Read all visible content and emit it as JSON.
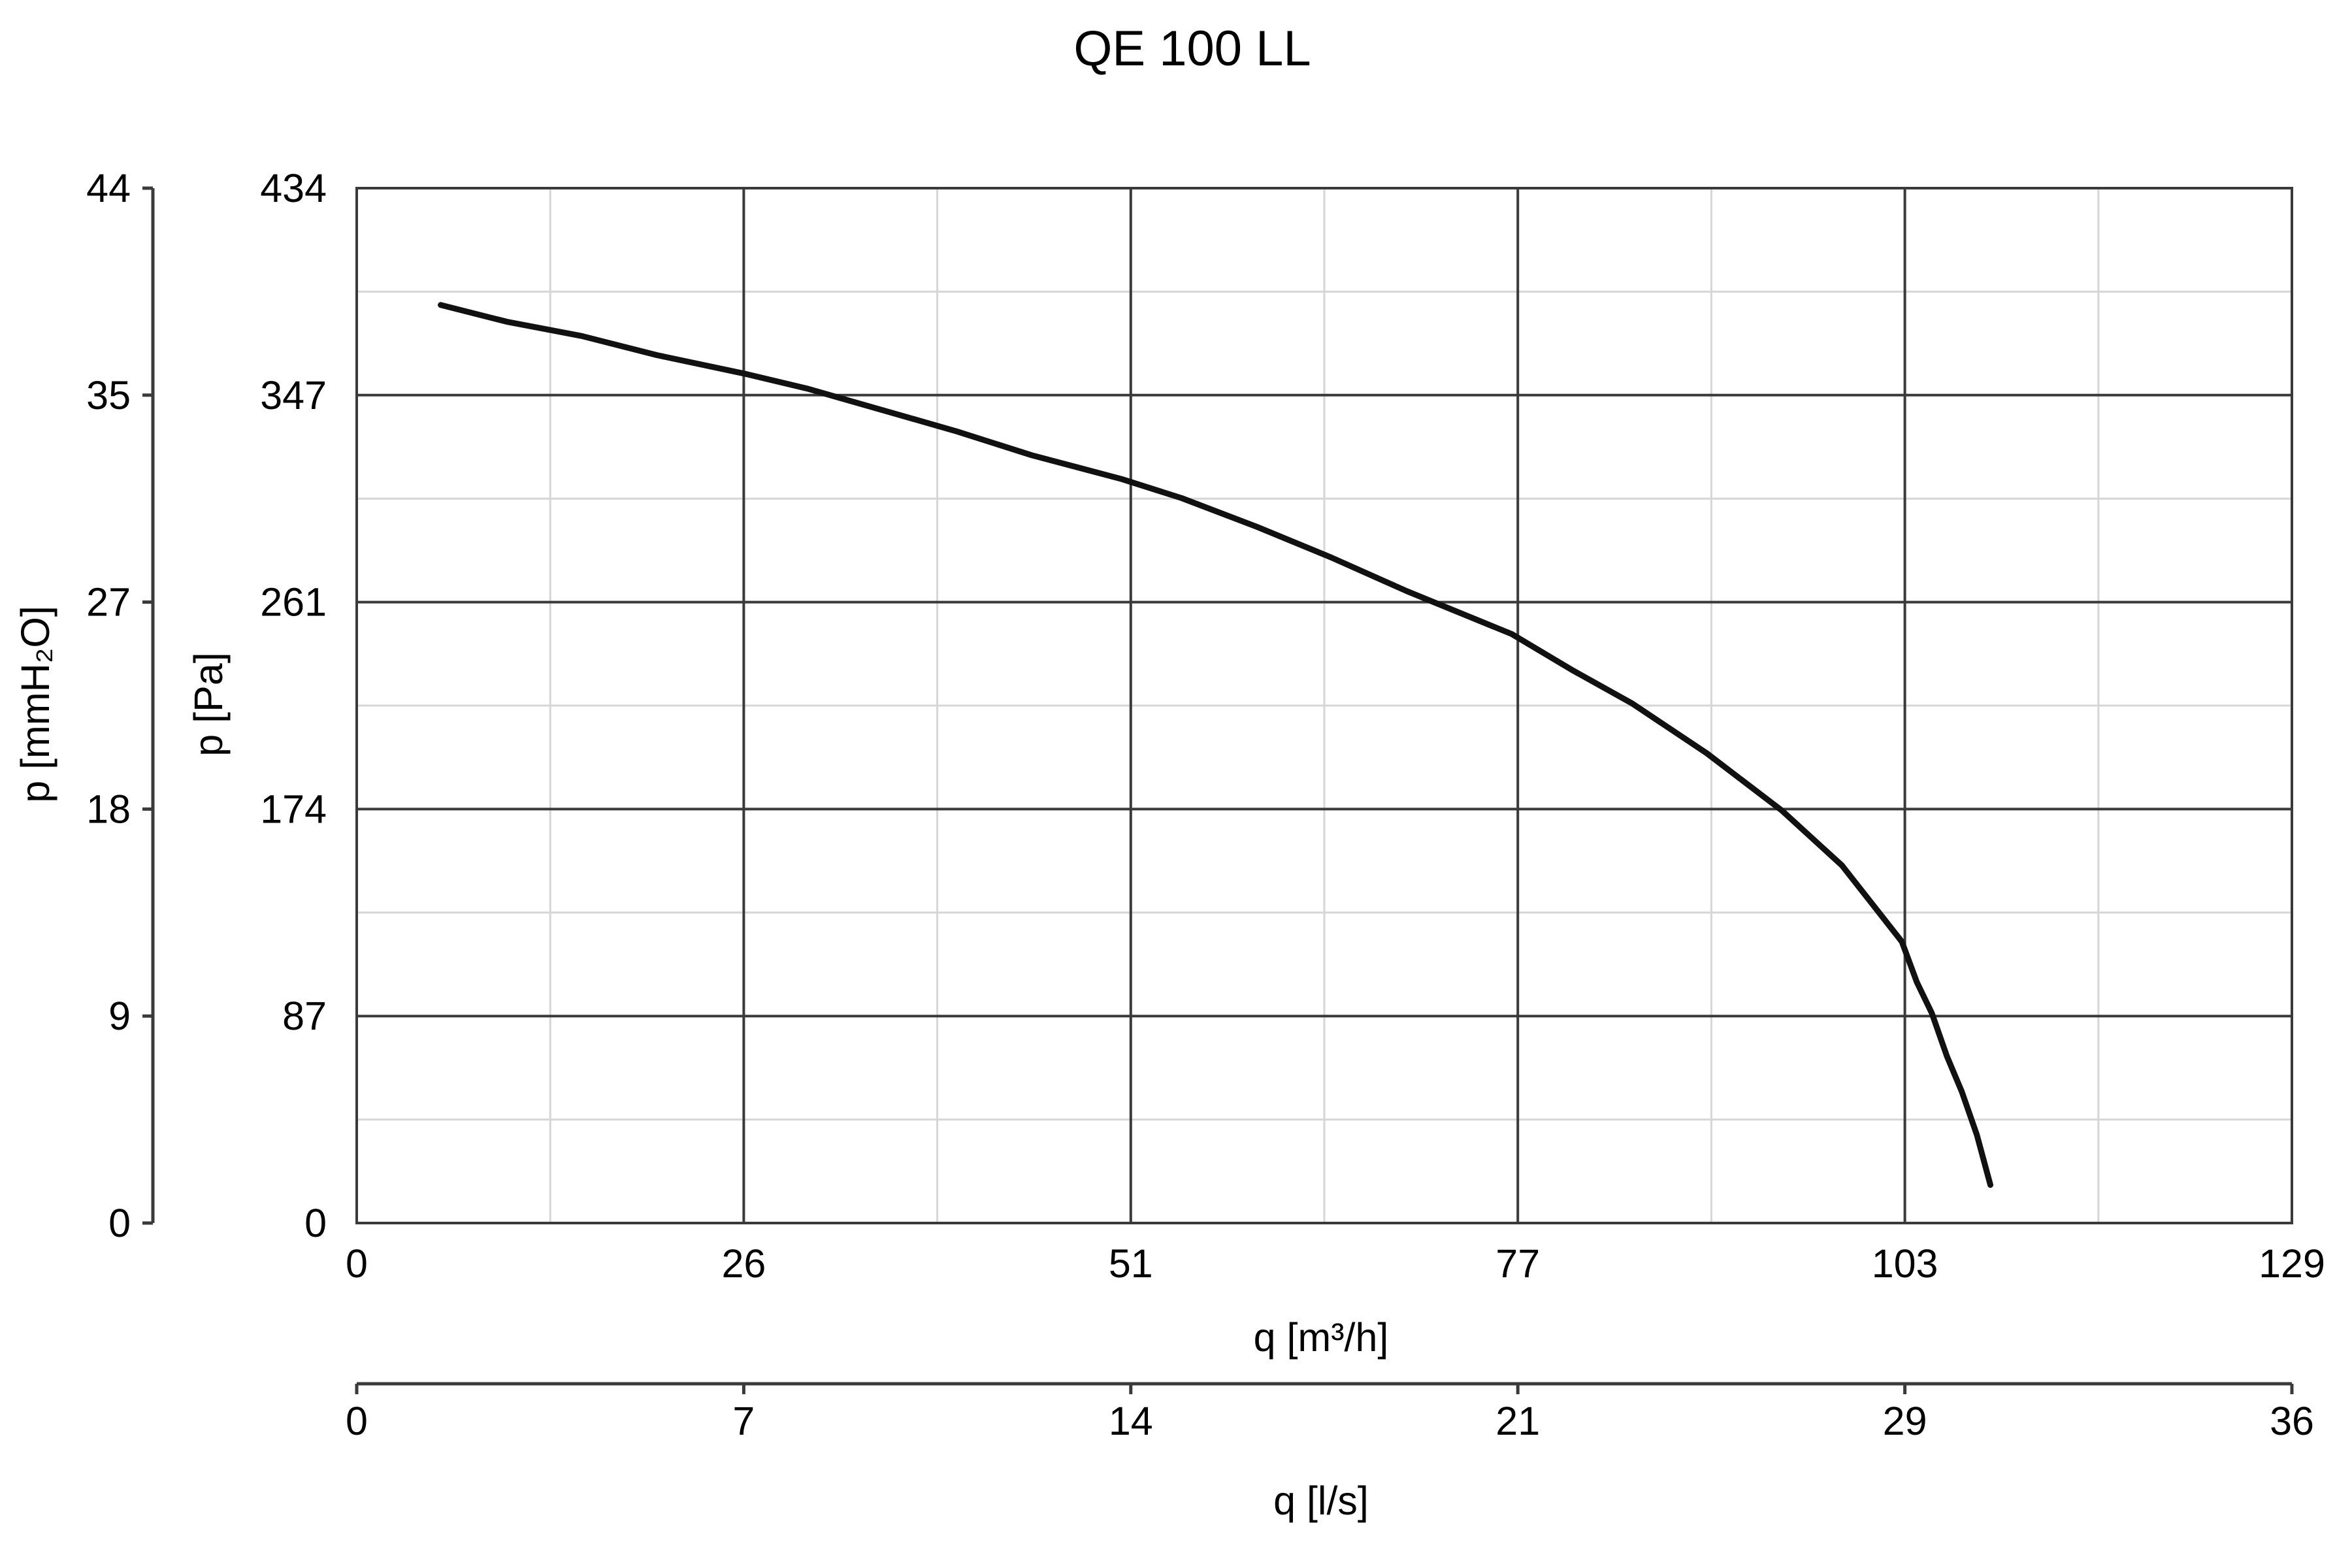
{
  "chart_data": {
    "type": "line",
    "title": "QE 100 LL",
    "xlabel": "q [m³/h]",
    "ylabel": "p [Pa]",
    "xlim": [
      0,
      129
    ],
    "ylim": [
      0,
      434
    ],
    "x_ticks": [
      "0",
      "26",
      "51",
      "77",
      "103",
      "129"
    ],
    "y_ticks": [
      "0",
      "87",
      "174",
      "261",
      "347",
      "434"
    ],
    "secondary_x_axis": {
      "label": "q [l/s]",
      "ticks": [
        "0",
        "7",
        "14",
        "21",
        "29",
        "36"
      ]
    },
    "secondary_y_axis": {
      "label": "p [mmH₂O]",
      "ticks": [
        "0",
        "9",
        "18",
        "27",
        "35",
        "44"
      ]
    },
    "grid": true,
    "series": [
      {
        "color": "#111111",
        "x": [
          5.6,
          10,
          15,
          20,
          26,
          30,
          35,
          40,
          45,
          51,
          55,
          60,
          65,
          70,
          77,
          81,
          85,
          90,
          95,
          99,
          101,
          103,
          104,
          105,
          106,
          107,
          108,
          108.9
        ],
        "y": [
          385,
          378,
          372,
          364,
          356,
          350,
          341,
          332,
          322,
          312,
          304,
          292,
          279,
          265,
          247,
          232,
          218,
          197,
          173,
          150,
          134,
          118,
          101,
          88,
          70,
          55,
          37,
          16
        ]
      }
    ]
  }
}
